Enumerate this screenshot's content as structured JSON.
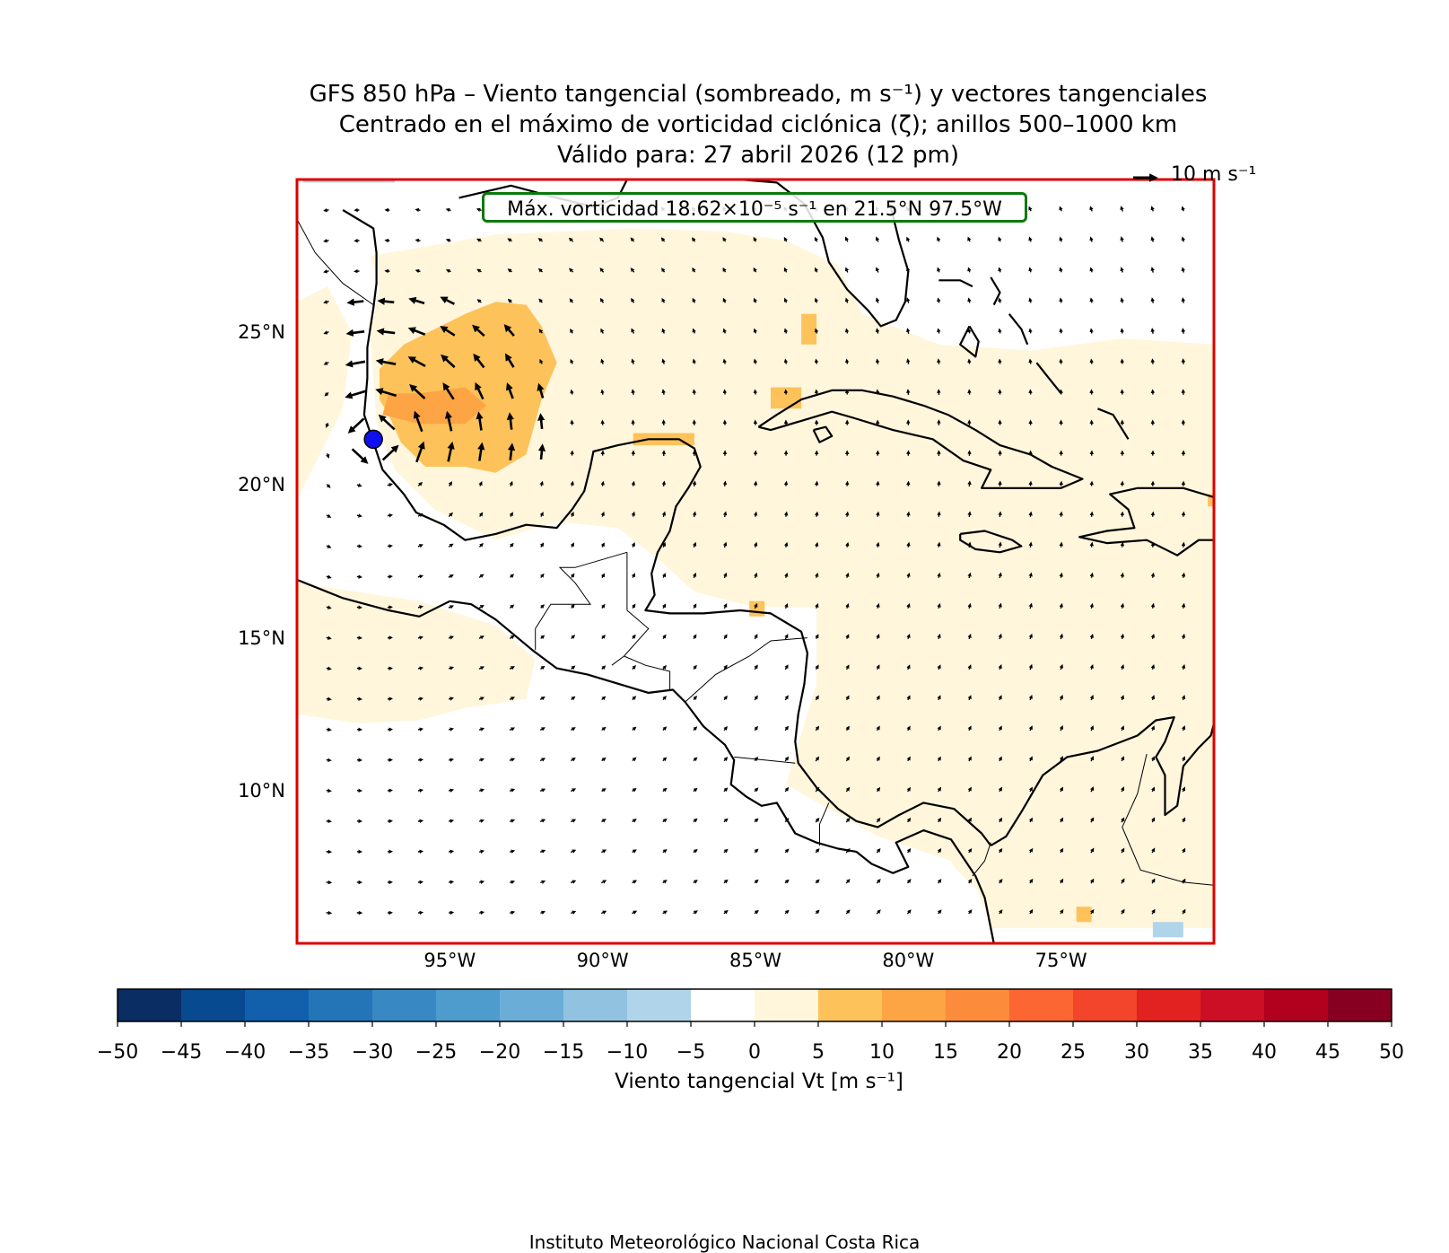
{
  "title": {
    "line1": "GFS 850 hPa – Viento tangencial (sombreado, m s⁻¹) y vectores tangenciales",
    "line2": "Centrado en el máximo de vorticidad ciclónica (ζ); anillos 500–1000 km",
    "line3": "Válido para: 27 abril 2026 (12 pm)"
  },
  "map": {
    "extent": {
      "lon_min": -100,
      "lon_max": -70,
      "lat_min": 5,
      "lat_max": 30
    },
    "lat_ticks": [
      {
        "value": 25,
        "label": "25°N"
      },
      {
        "value": 20,
        "label": "20°N"
      },
      {
        "value": 15,
        "label": "15°N"
      },
      {
        "value": 10,
        "label": "10°N"
      }
    ],
    "lon_ticks": [
      {
        "value": -95,
        "label": "95°W"
      },
      {
        "value": -90,
        "label": "90°W"
      },
      {
        "value": -85,
        "label": "85°W"
      },
      {
        "value": -80,
        "label": "80°W"
      },
      {
        "value": -75,
        "label": "75°W"
      }
    ],
    "center_marker": {
      "lat": 21.5,
      "lon": -97.5,
      "color": "#1010ee"
    },
    "info_box": "Máx. vorticidad 18.62×10⁻⁵ s⁻¹ en 21.5°N 97.5°W",
    "reference_vector": {
      "label": "10 m s⁻¹",
      "speed": 10
    },
    "frame_color": "#dd0000",
    "coast_color": "#000000"
  },
  "colorbar": {
    "label": "Viento tangencial Vt [m s⁻¹]",
    "ticks": [
      "−50",
      "−45",
      "−40",
      "−35",
      "−30",
      "−25",
      "−20",
      "−15",
      "−10",
      "−5",
      "0",
      "5",
      "10",
      "15",
      "20",
      "25",
      "30",
      "35",
      "40",
      "45",
      "50"
    ],
    "colors": [
      "#0a2d63",
      "#084a90",
      "#125fac",
      "#2474b8",
      "#3889c3",
      "#4d9ccd",
      "#6aaed8",
      "#91c3e0",
      "#b0d4ea",
      "#ffffff",
      "#fff6dc",
      "#fdc25a",
      "#fda445",
      "#fc8b3b",
      "#fb6632",
      "#f2452b",
      "#e22221",
      "#cc0f25",
      "#b2001f",
      "#870022"
    ]
  },
  "credit": "Instituto Meteorológico Nacional Costa Rica"
}
